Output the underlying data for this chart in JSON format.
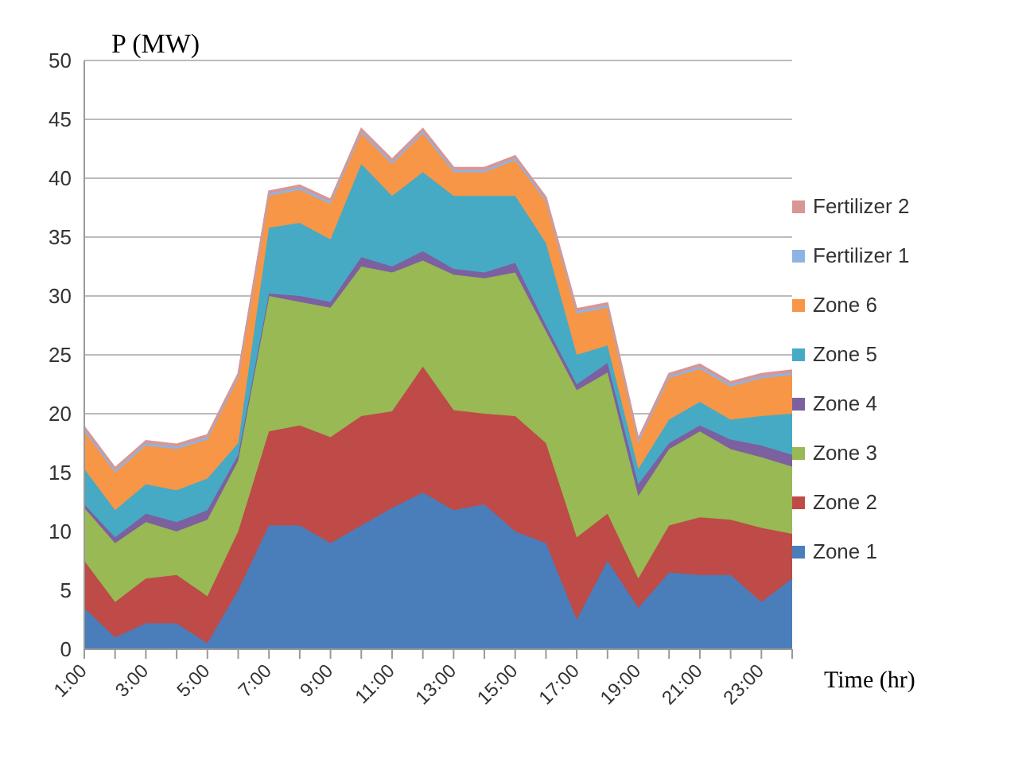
{
  "chart_data": {
    "type": "area",
    "stacked": true,
    "ylabel": "P (MW)",
    "xlabel": "Time (hr)",
    "categories": [
      "1:00",
      null,
      "3:00",
      null,
      "5:00",
      null,
      "7:00",
      null,
      "9:00",
      null,
      "11:00",
      null,
      "13:00",
      null,
      "15:00",
      null,
      "17:00",
      null,
      "19:00",
      null,
      "21:00",
      null,
      "23:00",
      null
    ],
    "ylim": [
      0,
      50
    ],
    "yticks": [
      0,
      5,
      10,
      15,
      20,
      25,
      30,
      35,
      40,
      45,
      50
    ],
    "grid": "y",
    "legend": "right",
    "series": [
      {
        "name": "Zone 1",
        "color": "#4a7ebb",
        "values": [
          3.5,
          1,
          2.2,
          2.2,
          0.5,
          5,
          10.5,
          10.5,
          9,
          10.5,
          12,
          13.3,
          11.8,
          12.3,
          10,
          9,
          2.5,
          7.5,
          3.5,
          6.5,
          6.3,
          6.3,
          4,
          6
        ]
      },
      {
        "name": "Zone 2",
        "color": "#be4b48",
        "values": [
          4,
          3,
          3.8,
          4.1,
          4,
          5,
          8,
          8.5,
          9,
          9.3,
          8.2,
          10.7,
          8.5,
          7.7,
          9.8,
          8.5,
          7,
          4,
          2.5,
          4,
          4.9,
          4.7,
          6.3,
          3.8
        ]
      },
      {
        "name": "Zone 3",
        "color": "#98b954",
        "values": [
          4.5,
          5,
          4.8,
          3.7,
          6.5,
          6,
          11.5,
          10.5,
          11,
          12.7,
          11.8,
          9,
          11.5,
          11.5,
          12.2,
          9.5,
          12.5,
          12,
          7,
          6.5,
          7.3,
          6,
          6,
          5.7
        ]
      },
      {
        "name": "Zone 4",
        "color": "#7d60a0",
        "values": [
          0.3,
          0.5,
          0.7,
          0.8,
          0.8,
          0.5,
          0.2,
          0.5,
          0.5,
          0.8,
          0.5,
          0.8,
          0.5,
          0.5,
          0.8,
          0.5,
          0.5,
          0.8,
          1,
          0.5,
          0.5,
          0.8,
          1,
          1
        ]
      },
      {
        "name": "Zone 5",
        "color": "#46aac5",
        "values": [
          3,
          2.3,
          2.5,
          2.7,
          2.7,
          1,
          5.6,
          6.2,
          5.3,
          7.9,
          6,
          6.7,
          6.2,
          6.5,
          5.7,
          7,
          2.5,
          1.5,
          1.3,
          2,
          2,
          1.7,
          2.5,
          3.5
        ]
      },
      {
        "name": "Zone 6",
        "color": "#f79646",
        "values": [
          3.2,
          3.2,
          3.3,
          3.5,
          3.3,
          5.5,
          2.7,
          2.8,
          3,
          2.6,
          2.7,
          3.3,
          2,
          2,
          3,
          3.5,
          3.5,
          3.2,
          2.2,
          3.5,
          2.8,
          2.8,
          3.2,
          3.3
        ]
      },
      {
        "name": "Fertilizer 1",
        "color": "#8eb4e3",
        "values": [
          0.2,
          0.2,
          0.2,
          0.2,
          0.2,
          0.2,
          0.2,
          0.2,
          0.2,
          0.2,
          0.2,
          0.2,
          0.2,
          0.2,
          0.2,
          0.2,
          0.2,
          0.2,
          0.2,
          0.2,
          0.2,
          0.2,
          0.2,
          0.2
        ]
      },
      {
        "name": "Fertilizer 2",
        "color": "#d99694",
        "values": [
          0.2,
          0.2,
          0.2,
          0.2,
          0.2,
          0.2,
          0.2,
          0.2,
          0.2,
          0.2,
          0.2,
          0.2,
          0.2,
          0.2,
          0.2,
          0.2,
          0.2,
          0.2,
          0.2,
          0.2,
          0.2,
          0.2,
          0.2,
          0.2
        ]
      }
    ]
  }
}
